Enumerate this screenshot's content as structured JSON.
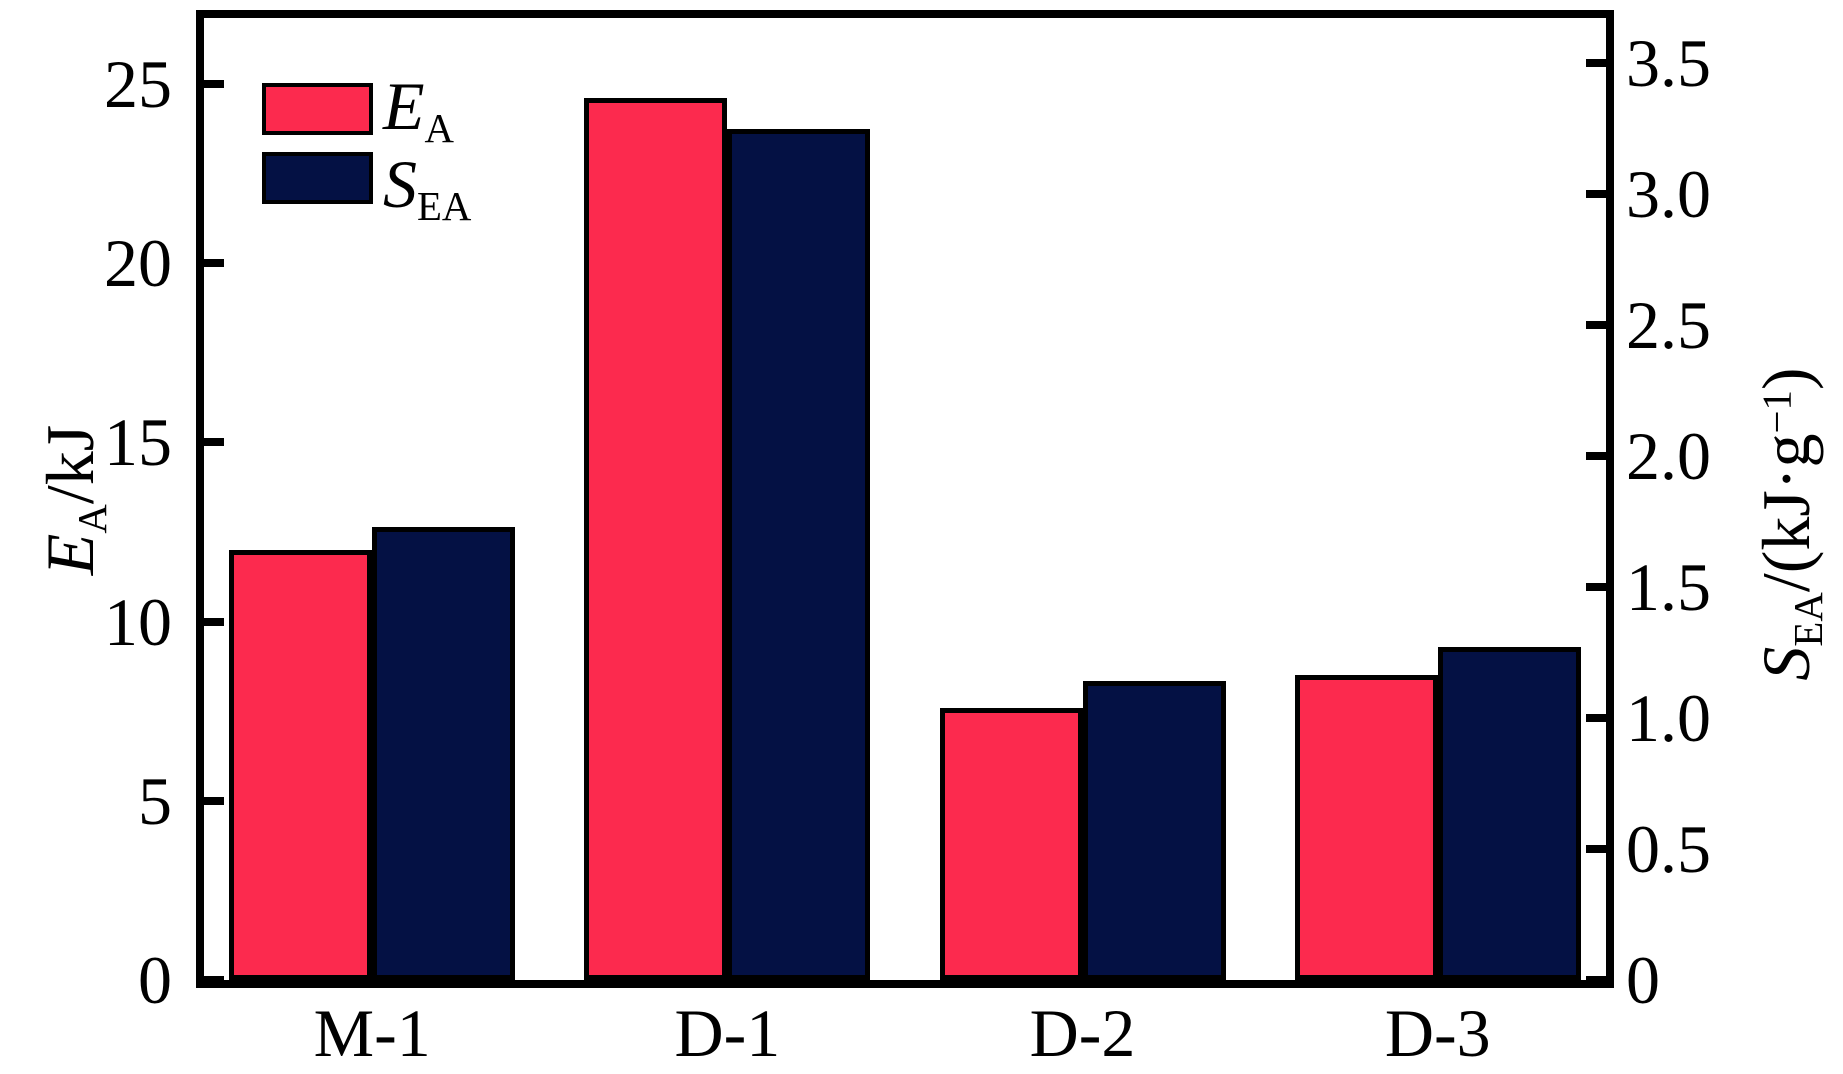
{
  "chart_data": {
    "type": "bar",
    "title": "",
    "categories": [
      "M-1",
      "D-1",
      "D-2",
      "D-3"
    ],
    "series": [
      {
        "name": "EA",
        "legend_main": "E",
        "legend_sub": "A",
        "axis": "left",
        "color": "#fc2a4e",
        "values": [
          12.0,
          24.6,
          7.6,
          8.5
        ]
      },
      {
        "name": "SEA",
        "legend_main": "S",
        "legend_sub": "EA",
        "axis": "right",
        "color": "#041144",
        "values": [
          1.73,
          3.25,
          1.14,
          1.27
        ]
      }
    ],
    "left_axis": {
      "title_main": "E",
      "title_sub": "A",
      "title_rest": "/kJ",
      "tick_labels": [
        "0",
        "5",
        "10",
        "15",
        "20",
        "25"
      ],
      "tick_values": [
        0,
        5,
        10,
        15,
        20,
        25
      ],
      "range": [
        0,
        26.84
      ]
    },
    "right_axis": {
      "title_main": "S",
      "title_sub": "EA",
      "title_rest": "/(kJ·g",
      "title_sup": "−1",
      "title_close": ")",
      "tick_labels": [
        "0",
        "0.5",
        "1.0",
        "1.5",
        "2.0",
        "2.5",
        "3.0",
        "3.5"
      ],
      "tick_values": [
        0,
        0.5,
        1.0,
        1.5,
        2.0,
        2.5,
        3.0,
        3.5
      ],
      "range": [
        0,
        3.672
      ]
    },
    "legend_position": "top-left",
    "grid": false,
    "ink_color": "#000000",
    "background_color": "#ffffff"
  }
}
